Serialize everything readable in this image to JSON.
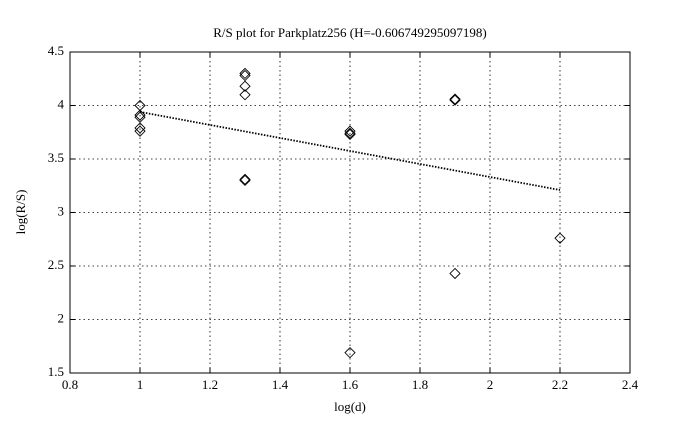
{
  "chart_data": {
    "type": "scatter",
    "title": "R/S plot for Parkplatz256 (H=-0.606749295097198)",
    "x_label": "log(d)",
    "y_label": "log(R/S)",
    "series": [
      {
        "type": "scatter",
        "marker": "diamond",
        "color": "#000000",
        "x": [
          1,
          1,
          1,
          1,
          1,
          1.3,
          1.3,
          1.3,
          1.3,
          1.3,
          1.3,
          1.6,
          1.6,
          1.6,
          1.6,
          1.9,
          1.9,
          1.9,
          2.2
        ],
        "values": [
          4.0,
          3.91,
          3.89,
          3.79,
          3.76,
          4.3,
          4.28,
          4.18,
          4.1,
          3.31,
          3.3,
          3.76,
          3.74,
          3.73,
          1.69,
          4.06,
          4.05,
          2.43,
          2.76
        ]
      },
      {
        "type": "line",
        "line_style": "dotted",
        "color": "#000000",
        "x": [
          1,
          2.2
        ],
        "values": [
          3.94,
          3.21
        ]
      }
    ],
    "xlim": [
      0.8,
      2.4
    ],
    "xticks": [
      0.8,
      1,
      1.2,
      1.4,
      1.6,
      1.8,
      2,
      2.2,
      2.4
    ],
    "ylim": [
      1.5,
      4.5
    ],
    "yticks": [
      1.5,
      2,
      2.5,
      3,
      3.5,
      4,
      4.5
    ],
    "grid": true
  }
}
